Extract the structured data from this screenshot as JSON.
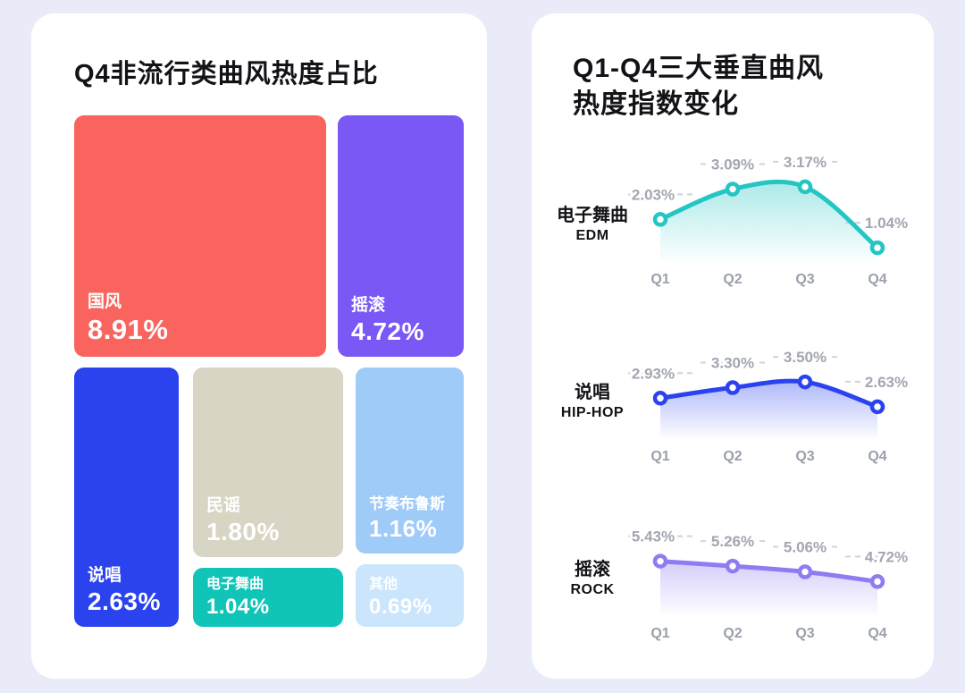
{
  "background": "#E9EBF8",
  "left_card": {
    "title": "Q4非流行类曲风热度占比",
    "blocks": [
      {
        "label": "国风",
        "value": "8.91%",
        "color": "#F9655E"
      },
      {
        "label": "摇滚",
        "value": "4.72%",
        "color": "#7A58F5"
      },
      {
        "label": "说唱",
        "value": "2.63%",
        "color": "#2B43EE"
      },
      {
        "label": "民谣",
        "value": "1.80%",
        "color": "#D8D5C5"
      },
      {
        "label": "电子舞曲",
        "value": "1.04%",
        "color": "#10C5B8"
      },
      {
        "label": "节奏布鲁斯",
        "value": "1.16%",
        "color": "#9FCBF8"
      },
      {
        "label": "其他",
        "value": "0.69%",
        "color": "#CBE5FD"
      }
    ]
  },
  "right_card": {
    "title_line1": "Q1-Q4三大垂直曲风",
    "title_line2": "热度指数变化",
    "charts": [
      {
        "label_zh": "电子舞曲",
        "label_en": "EDM"
      },
      {
        "label_zh": "说唱",
        "label_en": "HIP-HOP"
      },
      {
        "label_zh": "摇滚",
        "label_en": "ROCK"
      }
    ]
  },
  "chart_data": [
    {
      "type": "treemap",
      "title": "Q4非流行类曲风热度占比",
      "items": [
        {
          "label": "国风",
          "value": 8.91
        },
        {
          "label": "摇滚",
          "value": 4.72
        },
        {
          "label": "说唱",
          "value": 2.63
        },
        {
          "label": "民谣",
          "value": 1.8
        },
        {
          "label": "节奏布鲁斯",
          "value": 1.16
        },
        {
          "label": "电子舞曲",
          "value": 1.04
        },
        {
          "label": "其他",
          "value": 0.69
        }
      ],
      "unit": "%"
    },
    {
      "type": "line",
      "title": "Q1-Q4三大垂直曲风热度指数变化",
      "categories": [
        "Q1",
        "Q2",
        "Q3",
        "Q4"
      ],
      "series": [
        {
          "name": "电子舞曲 EDM",
          "values": [
            2.03,
            3.09,
            3.17,
            1.04
          ],
          "color": "#23C6C3"
        },
        {
          "name": "说唱 HIP-HOP",
          "values": [
            2.93,
            3.3,
            3.5,
            2.63
          ],
          "color": "#2B43EE"
        },
        {
          "name": "摇滚 ROCK",
          "values": [
            5.43,
            5.26,
            5.06,
            4.72
          ],
          "color": "#8F7BF2"
        }
      ],
      "unit": "%",
      "legend_position": "left",
      "grid": "dashed-label-ticks",
      "area_fill": true
    }
  ]
}
